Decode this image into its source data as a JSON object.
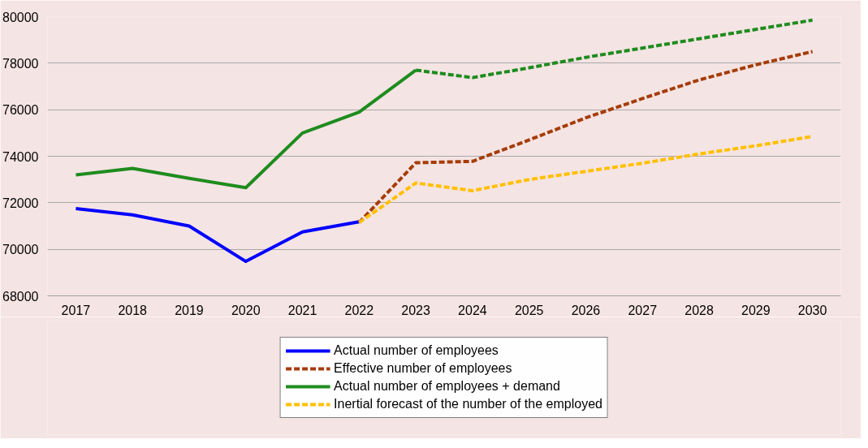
{
  "chart_data": {
    "type": "line",
    "categories": [
      "2017",
      "2018",
      "2019",
      "2020",
      "2021",
      "2022",
      "2023",
      "2024",
      "2025",
      "2026",
      "2027",
      "2028",
      "2029",
      "2030"
    ],
    "series": [
      {
        "name": "Actual number of employees",
        "color": "#0000ff",
        "line_style": "solid",
        "values": [
          71750,
          71480,
          71000,
          69480,
          70750,
          71180,
          null,
          null,
          null,
          null,
          null,
          null,
          null,
          null
        ]
      },
      {
        "name": "Effective number of employees",
        "color": "#a63c06",
        "line_style": "dashed",
        "values": [
          null,
          null,
          null,
          null,
          null,
          71150,
          73720,
          73780,
          74700,
          75650,
          76480,
          77280,
          77930,
          78500
        ]
      },
      {
        "name": "Actual number of employees + demand",
        "color": "#1e8c1e",
        "line_style": "solid",
        "values": [
          73200,
          73480,
          73050,
          72650,
          75000,
          75900,
          77700,
          null,
          null,
          null,
          null,
          null,
          null,
          null
        ]
      },
      {
        "color": "#1e8c1e",
        "line_style": "dashed",
        "values": [
          null,
          null,
          null,
          null,
          null,
          null,
          77700,
          77380,
          77800,
          78250,
          78650,
          79050,
          79450,
          79850
        ]
      },
      {
        "name": "Inertial forecast of the number of the employed",
        "color": "#ffc000",
        "line_style": "dashed",
        "values": [
          null,
          null,
          null,
          null,
          null,
          71150,
          72850,
          72520,
          73000,
          73350,
          73700,
          74100,
          74450,
          74850
        ]
      }
    ],
    "ylim": [
      68000,
      80000
    ],
    "yticks": [
      68000,
      70000,
      72000,
      74000,
      76000,
      78000,
      80000
    ],
    "grid": "y",
    "legend": "bottom"
  }
}
